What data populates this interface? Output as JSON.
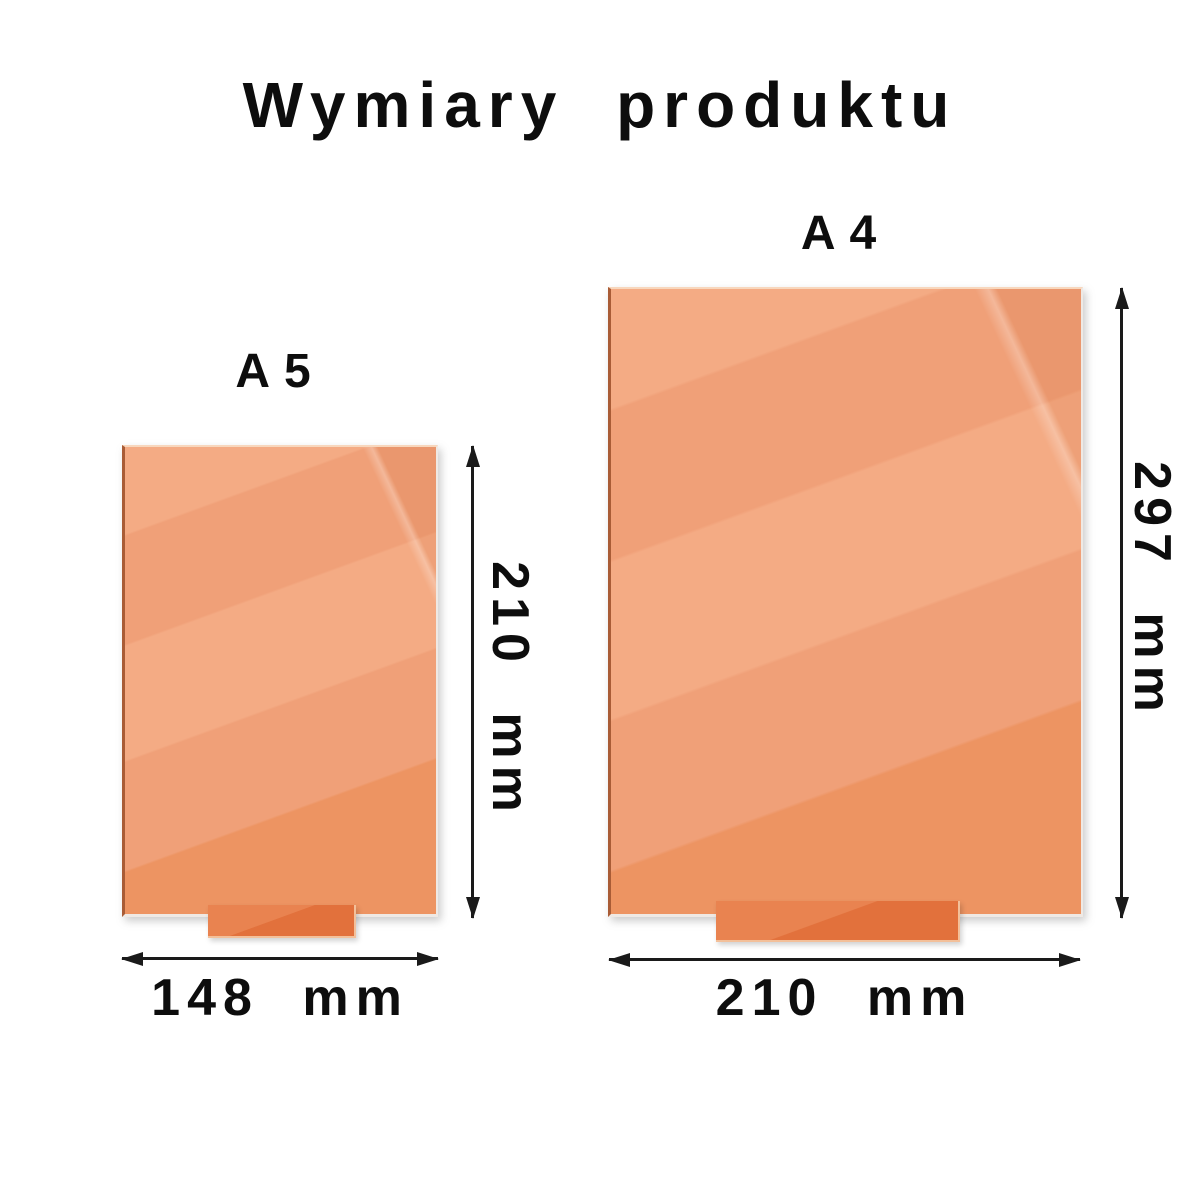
{
  "title": "Wymiary produktu",
  "colors": {
    "background": "#ffffff",
    "panel_base": "#f0a078",
    "panel_light": "#f4ab84",
    "panel_shade": "#ed9462",
    "panel_edge_dark": "#a95c36",
    "panel_edge_light": "#f8d7bd",
    "stand_base": "#e2713c",
    "stand_light": "#e98350",
    "arrow": "#1a1a1a",
    "text": "#0d0d0d"
  },
  "products": [
    {
      "name": "A5",
      "label": "A5",
      "width_label": "148 mm",
      "height_label": "210 mm",
      "width_mm": 148,
      "height_mm": 210
    },
    {
      "name": "A4",
      "label": "A4",
      "width_label": "210 mm",
      "height_label": "297 mm",
      "width_mm": 210,
      "height_mm": 297
    }
  ]
}
